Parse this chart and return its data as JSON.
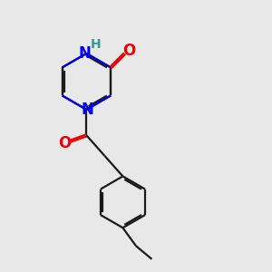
{
  "bg_color": "#e8e8e8",
  "bond_color": "#1a1a1a",
  "N_color": "#0000ee",
  "O_color": "#ee0000",
  "H_color": "#339999",
  "line_width": 1.6,
  "dbo": 0.055,
  "font_size_N": 12,
  "font_size_H": 10,
  "font_size_O": 12,
  "fig_w": 3.0,
  "fig_h": 3.0,
  "dpi": 100,
  "xlim": [
    0.5,
    6.5
  ],
  "ylim": [
    0.3,
    8.5
  ]
}
